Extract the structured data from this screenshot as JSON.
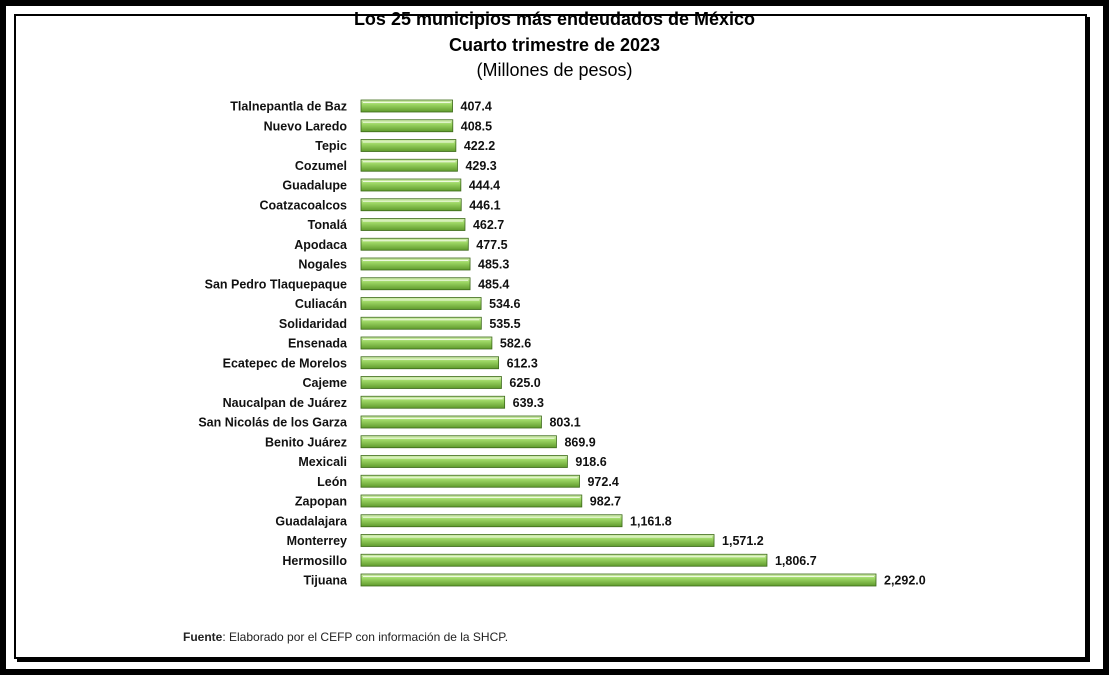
{
  "chart_data": {
    "type": "bar",
    "orientation": "horizontal",
    "title": "Los 25 municipios más endeudados de México",
    "subtitle_line": "Cuarto trimestre de 2023",
    "units": "(Millones de pesos)",
    "categories": [
      "Tlalnepantla de Baz",
      "Nuevo Laredo",
      "Tepic",
      "Cozumel",
      "Guadalupe",
      "Coatzacoalcos",
      "Tonalá",
      "Apodaca",
      "Nogales",
      "San Pedro Tlaquepaque",
      "Culiacán",
      "Solidaridad",
      "Ensenada",
      "Ecatepec de Morelos",
      "Cajeme",
      "Naucalpan de Juárez",
      "San Nicolás de los Garza",
      "Benito Juárez",
      "Mexicali",
      "León",
      "Zapopan",
      "Guadalajara",
      "Monterrey",
      "Hermosillo",
      "Tijuana"
    ],
    "values": [
      407.4,
      408.5,
      422.2,
      429.3,
      444.4,
      446.1,
      462.7,
      477.5,
      485.3,
      485.4,
      534.6,
      535.5,
      582.6,
      612.3,
      625.0,
      639.3,
      803.1,
      869.9,
      918.6,
      972.4,
      982.7,
      1161.8,
      1571.2,
      1806.7,
      2292.0
    ],
    "labels": [
      "407.4",
      "408.5",
      "422.2",
      "429.3",
      "444.4",
      "446.1",
      "462.7",
      "477.5",
      "485.3",
      "485.4",
      "534.6",
      "535.5",
      "582.6",
      "612.3",
      "625.0",
      "639.3",
      "803.1",
      "869.9",
      "918.6",
      "972.4",
      "982.7",
      "1,161.8",
      "1,571.2",
      "1,806.7",
      "2,292.0"
    ],
    "bar_color": "#8fce55",
    "grid": false,
    "legend": "none"
  },
  "source": {
    "label": "Fuente",
    "text": ": Elaborado por el CEFP con información de la SHCP."
  }
}
